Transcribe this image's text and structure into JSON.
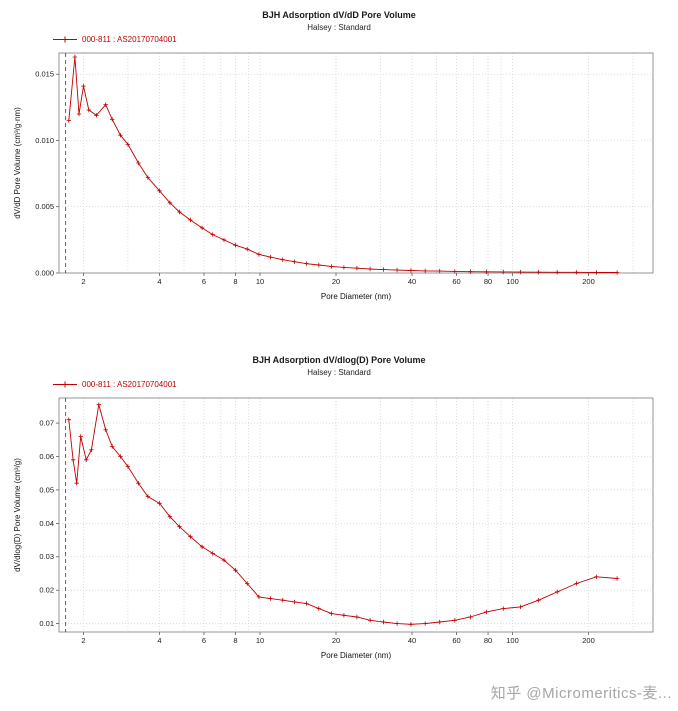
{
  "watermark": "知乎 @Micromeritics-麦...",
  "chart_data": [
    {
      "type": "line",
      "title": "BJH Adsorption dV/dD Pore Volume",
      "subtitle": "Halsey : Standard",
      "legend_label": "000-811 : AS20170704001",
      "xlabel": "Pore Diameter (nm)",
      "ylabel": "dV/dD Pore Volume (cm³/g·nm)",
      "xscale": "log",
      "grid": true,
      "legend_position": "top-left",
      "xlim": [
        1.6,
        360
      ],
      "ylim": [
        0,
        0.0166
      ],
      "xticks": [
        2,
        4,
        6,
        8,
        10,
        20,
        40,
        60,
        80,
        100,
        200
      ],
      "xgrid": [
        2,
        3,
        4,
        5,
        6,
        7,
        8,
        9,
        10,
        20,
        30,
        40,
        50,
        60,
        70,
        80,
        90,
        100,
        200,
        300
      ],
      "yticks": [
        0,
        0.005,
        0.01,
        0.015
      ],
      "ytick_labels": [
        "0.000",
        "0.005",
        "0.010",
        "0.015"
      ],
      "cutoff_line_x": 1.7,
      "series": [
        {
          "name": "000-811 : AS20170704001",
          "color": "#c00000",
          "marker": "plus",
          "x": [
            1.75,
            1.85,
            1.92,
            2.0,
            2.1,
            2.25,
            2.45,
            2.6,
            2.8,
            3.0,
            3.3,
            3.6,
            4.0,
            4.4,
            4.8,
            5.3,
            5.9,
            6.5,
            7.2,
            8.0,
            8.9,
            9.9,
            11.0,
            12.3,
            13.7,
            15.3,
            17.1,
            19.2,
            21.5,
            24.2,
            27.3,
            30.8,
            34.9,
            39.6,
            45.1,
            51.5,
            59.1,
            68.1,
            78.9,
            91.9,
            107.6,
            126.8,
            150.3,
            179.2,
            215.0,
            259.6
          ],
          "y": [
            0.0115,
            0.0163,
            0.012,
            0.0141,
            0.0123,
            0.0119,
            0.0127,
            0.0116,
            0.0104,
            0.0097,
            0.0083,
            0.0072,
            0.0062,
            0.0053,
            0.0046,
            0.004,
            0.0034,
            0.0029,
            0.0025,
            0.0021,
            0.0018,
            0.0014,
            0.0012,
            0.001,
            0.00085,
            0.0007,
            0.0006,
            0.0005,
            0.00042,
            0.00036,
            0.0003,
            0.00026,
            0.00022,
            0.00019,
            0.00016,
            0.00014,
            0.00012,
            0.0001,
            9e-05,
            8e-05,
            7e-05,
            6e-05,
            5e-05,
            5e-05,
            4e-05,
            4e-05
          ]
        }
      ]
    },
    {
      "type": "line",
      "title": "BJH Adsorption dV/dlog(D) Pore Volume",
      "subtitle": "Halsey : Standard",
      "legend_label": "000-811 : AS20170704001",
      "xlabel": "Pore Diameter (nm)",
      "ylabel": "dV/dlog(D) Pore Volume (cm³/g)",
      "xscale": "log",
      "grid": true,
      "legend_position": "top-left",
      "xlim": [
        1.6,
        360
      ],
      "ylim": [
        0.0075,
        0.0775
      ],
      "xticks": [
        2,
        4,
        6,
        8,
        10,
        20,
        40,
        60,
        80,
        100,
        200
      ],
      "xgrid": [
        2,
        3,
        4,
        5,
        6,
        7,
        8,
        9,
        10,
        20,
        30,
        40,
        50,
        60,
        70,
        80,
        90,
        100,
        200,
        300
      ],
      "yticks": [
        0.01,
        0.02,
        0.03,
        0.04,
        0.05,
        0.06,
        0.07
      ],
      "ytick_labels": [
        "0.01",
        "0.02",
        "0.03",
        "0.04",
        "0.05",
        "0.06",
        "0.07"
      ],
      "cutoff_line_x": 1.7,
      "series": [
        {
          "name": "000-811 : AS20170704001",
          "color": "#c00000",
          "marker": "plus",
          "x": [
            1.75,
            1.82,
            1.88,
            1.95,
            2.05,
            2.15,
            2.3,
            2.45,
            2.6,
            2.8,
            3.0,
            3.3,
            3.6,
            4.0,
            4.4,
            4.8,
            5.3,
            5.9,
            6.5,
            7.2,
            8.0,
            8.9,
            9.9,
            11.0,
            12.3,
            13.7,
            15.3,
            17.1,
            19.2,
            21.5,
            24.2,
            27.3,
            30.8,
            34.9,
            39.6,
            45.1,
            51.5,
            59.1,
            68.1,
            78.9,
            91.9,
            107.6,
            126.8,
            150.3,
            179.2,
            215.0,
            259.6
          ],
          "y": [
            0.071,
            0.059,
            0.052,
            0.066,
            0.059,
            0.062,
            0.0755,
            0.068,
            0.063,
            0.06,
            0.057,
            0.052,
            0.048,
            0.046,
            0.042,
            0.039,
            0.036,
            0.033,
            0.031,
            0.029,
            0.026,
            0.022,
            0.018,
            0.0175,
            0.017,
            0.0165,
            0.016,
            0.0145,
            0.013,
            0.0125,
            0.012,
            0.011,
            0.0105,
            0.01,
            0.0098,
            0.01,
            0.0105,
            0.011,
            0.012,
            0.0135,
            0.0145,
            0.015,
            0.017,
            0.0195,
            0.022,
            0.024,
            0.0235
          ]
        }
      ]
    }
  ]
}
